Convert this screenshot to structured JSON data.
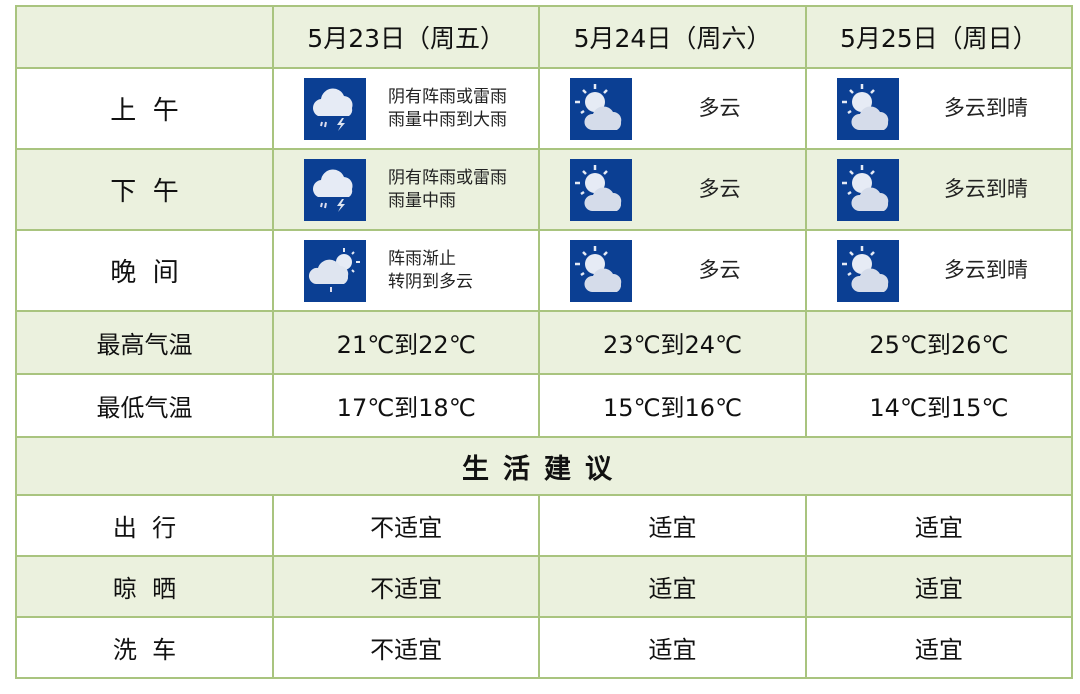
{
  "header": {
    "corner": "",
    "days": [
      "5月23日（周五）",
      "5月24日（周六）",
      "5月25日（周日）"
    ]
  },
  "periods": [
    {
      "label": "上  午",
      "cells": [
        {
          "icon": "thunderstorm-icon",
          "lines": [
            "阴有阵雨或雷雨",
            "雨量中雨到大雨"
          ]
        },
        {
          "icon": "partly-cloudy-icon",
          "lines": [
            "多云"
          ]
        },
        {
          "icon": "partly-cloudy-icon",
          "lines": [
            "多云到晴"
          ]
        }
      ]
    },
    {
      "label": "下  午",
      "cells": [
        {
          "icon": "thunderstorm-icon",
          "lines": [
            "阴有阵雨或雷雨",
            "雨量中雨"
          ]
        },
        {
          "icon": "partly-cloudy-icon",
          "lines": [
            "多云"
          ]
        },
        {
          "icon": "partly-cloudy-icon",
          "lines": [
            "多云到晴"
          ]
        }
      ]
    },
    {
      "label": "晚  间",
      "cells": [
        {
          "icon": "shower-clearing-icon",
          "lines": [
            "阵雨渐止",
            "转阴到多云"
          ]
        },
        {
          "icon": "partly-cloudy-icon",
          "lines": [
            "多云"
          ]
        },
        {
          "icon": "partly-cloudy-icon",
          "lines": [
            "多云到晴"
          ]
        }
      ]
    }
  ],
  "temps": [
    {
      "label": "最高气温",
      "values": [
        "21℃到22℃",
        "23℃到24℃",
        "25℃到26℃"
      ]
    },
    {
      "label": "最低气温",
      "values": [
        "17℃到18℃",
        "15℃到16℃",
        "14℃到15℃"
      ]
    }
  ],
  "advice_title": "生活建议",
  "advice": [
    {
      "label": "出  行",
      "values": [
        "不适宜",
        "适宜",
        "适宜"
      ]
    },
    {
      "label": "晾  晒",
      "values": [
        "不适宜",
        "适宜",
        "适宜"
      ]
    },
    {
      "label": "洗  车",
      "values": [
        "不适宜",
        "适宜",
        "适宜"
      ]
    }
  ],
  "colors": {
    "border": "#a9c47f",
    "tint": "#ebf1de",
    "icon_bg": "#0b3f93"
  }
}
